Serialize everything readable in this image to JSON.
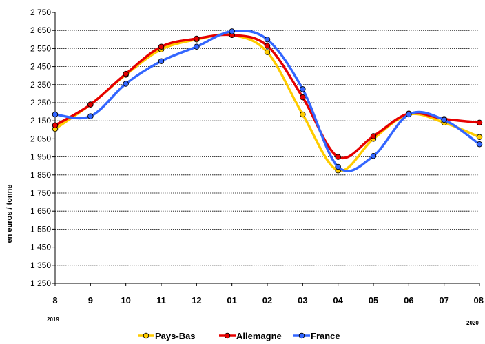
{
  "chart_data": {
    "type": "line",
    "ylabel": "en euros / tonne",
    "categories": [
      "8",
      "9",
      "10",
      "11",
      "12",
      "01",
      "02",
      "03",
      "04",
      "05",
      "06",
      "07",
      "08"
    ],
    "year_labels": {
      "start": "2019",
      "end": "2020"
    },
    "ylim": [
      1250,
      2750
    ],
    "yticks": [
      2750,
      2650,
      2550,
      2450,
      2350,
      2250,
      2150,
      2050,
      1950,
      1850,
      1750,
      1650,
      1550,
      1450,
      1350,
      1250
    ],
    "ytick_labels": [
      "2 750",
      "2 650",
      "2 550",
      "2 450",
      "2 350",
      "2 250",
      "2 150",
      "2 050",
      "1 950",
      "1 850",
      "1 750",
      "1 650",
      "1 550",
      "1 450",
      "1 350",
      "1 250"
    ],
    "grid": true,
    "legend_position": "bottom",
    "series": [
      {
        "name": "Pays-Bas",
        "color": "#FFCC00",
        "values": [
          2105,
          2240,
          2405,
          2545,
          2600,
          2625,
          2530,
          2185,
          1875,
          2050,
          2185,
          2140,
          2060
        ]
      },
      {
        "name": "Allemagne",
        "color": "#E60000",
        "values": [
          2125,
          2240,
          2410,
          2560,
          2605,
          2625,
          2565,
          2280,
          1950,
          2065,
          2190,
          2160,
          2140
        ]
      },
      {
        "name": "France",
        "color": "#3366FF",
        "values": [
          2185,
          2175,
          2355,
          2480,
          2560,
          2645,
          2600,
          2325,
          1895,
          1955,
          2185,
          2155,
          2020
        ]
      }
    ]
  }
}
